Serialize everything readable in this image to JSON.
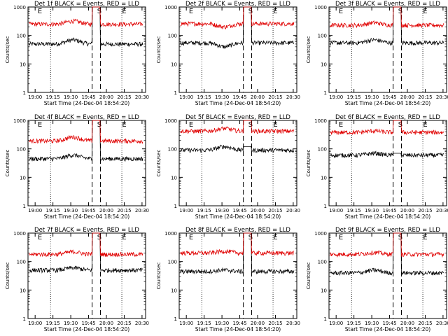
{
  "chart_data": [
    {
      "type": "line",
      "title": "Det 1f BLACK = Events, RED = LLD",
      "xlabel": "Start Time (24-Dec-04 18:54:20)",
      "ylabel": "Counts/sec",
      "xticks": [
        "19:00",
        "19:15",
        "19:30",
        "19:45",
        "20:00",
        "20:15",
        "20:30"
      ],
      "yticks": [
        "1",
        "10",
        "100",
        "1000"
      ],
      "yscale": "log",
      "ylim": [
        1,
        1000
      ],
      "markers": [
        {
          "label": "E",
          "x": "19:01"
        },
        {
          "label": "S",
          "x": "19:51"
        },
        {
          "label": "E",
          "x": "20:12"
        }
      ],
      "series": [
        {
          "name": "Events",
          "color": "#000000",
          "level": 50,
          "bump": 70,
          "peak": 1000
        },
        {
          "name": "LLD",
          "color": "#e00000",
          "level": 250,
          "bump": 320,
          "peak": 1000
        }
      ]
    },
    {
      "type": "line",
      "title": "Det 2f BLACK = Events, RED = LLD",
      "xlabel": "Start Time (24-Dec-04 18:54:20)",
      "ylabel": "Counts/sec",
      "xticks": [
        "19:00",
        "19:15",
        "19:30",
        "19:45",
        "20:00",
        "20:15",
        "20:30"
      ],
      "yticks": [
        "1",
        "10",
        "100",
        "1000"
      ],
      "yscale": "log",
      "ylim": [
        1,
        1000
      ],
      "markers": [
        {
          "label": "E",
          "x": "19:01"
        },
        {
          "label": "S",
          "x": "19:51"
        },
        {
          "label": "E",
          "x": "20:12"
        }
      ],
      "series": [
        {
          "name": "Events",
          "color": "#000000",
          "level": 55,
          "bump": 40,
          "peak": 1000
        },
        {
          "name": "LLD",
          "color": "#e00000",
          "level": 260,
          "bump": 200,
          "peak": 1000
        }
      ]
    },
    {
      "type": "line",
      "title": "Det 3f BLACK = Events, RED = LLD",
      "xlabel": "Start Time (24-Dec-04 18:54:20)",
      "ylabel": "Counts/sec",
      "xticks": [
        "19:00",
        "19:15",
        "19:30",
        "19:45",
        "20:00",
        "20:15",
        "20:30"
      ],
      "yticks": [
        "1",
        "10",
        "100",
        "1000"
      ],
      "yscale": "log",
      "ylim": [
        1,
        1000
      ],
      "markers": [
        {
          "label": "E",
          "x": "19:01"
        },
        {
          "label": "S",
          "x": "19:51"
        },
        {
          "label": "E",
          "x": "20:12"
        }
      ],
      "series": [
        {
          "name": "Events",
          "color": "#000000",
          "level": 55,
          "bump": 70,
          "peak": 1000
        },
        {
          "name": "LLD",
          "color": "#e00000",
          "level": 230,
          "bump": 280,
          "peak": 1000
        }
      ]
    },
    {
      "type": "line",
      "title": "Det 4f BLACK = Events, RED = LLD",
      "xlabel": "Start Time (24-Dec-04 18:54:20)",
      "ylabel": "Counts/sec",
      "xticks": [
        "19:00",
        "19:15",
        "19:30",
        "19:45",
        "20:00",
        "20:15",
        "20:30"
      ],
      "yticks": [
        "1",
        "10",
        "100",
        "1000"
      ],
      "yscale": "log",
      "ylim": [
        1,
        1000
      ],
      "markers": [
        {
          "label": "E",
          "x": "19:01"
        },
        {
          "label": "S",
          "x": "19:51"
        },
        {
          "label": "E",
          "x": "20:12"
        }
      ],
      "series": [
        {
          "name": "Events",
          "color": "#000000",
          "level": 45,
          "bump": 60,
          "peak": 1000
        },
        {
          "name": "LLD",
          "color": "#e00000",
          "level": 190,
          "bump": 260,
          "peak": 1000
        }
      ]
    },
    {
      "type": "line",
      "title": "Det 5f BLACK = Events, RED = LLD",
      "xlabel": "Start Time (24-Dec-04 18:54:20)",
      "ylabel": "Counts/sec",
      "xticks": [
        "19:00",
        "19:15",
        "19:30",
        "19:45",
        "20:00",
        "20:15",
        "20:30"
      ],
      "yticks": [
        "1",
        "10",
        "100",
        "1000"
      ],
      "yscale": "log",
      "ylim": [
        1,
        1000
      ],
      "markers": [
        {
          "label": "E",
          "x": "19:01"
        },
        {
          "label": "S",
          "x": "19:51"
        },
        {
          "label": "E",
          "x": "20:12"
        }
      ],
      "series": [
        {
          "name": "Events",
          "color": "#000000",
          "level": 90,
          "bump": 120,
          "peak": 120
        },
        {
          "name": "LLD",
          "color": "#e00000",
          "level": 420,
          "bump": 520,
          "peak": 1000
        }
      ]
    },
    {
      "type": "line",
      "title": "Det 6f BLACK = Events, RED = LLD",
      "xlabel": "Start Time (24-Dec-04 18:54:20)",
      "ylabel": "Counts/sec",
      "xticks": [
        "19:00",
        "19:15",
        "19:30",
        "19:45",
        "20:00",
        "20:15",
        "20:30"
      ],
      "yticks": [
        "1",
        "10",
        "100",
        "1000"
      ],
      "yscale": "log",
      "ylim": [
        1,
        1000
      ],
      "markers": [
        {
          "label": "E",
          "x": "19:01"
        },
        {
          "label": "S",
          "x": "19:51"
        },
        {
          "label": "E",
          "x": "20:12"
        }
      ],
      "series": [
        {
          "name": "Events",
          "color": "#000000",
          "level": 60,
          "bump": 70,
          "peak": 70
        },
        {
          "name": "LLD",
          "color": "#e00000",
          "level": 380,
          "bump": 430,
          "peak": 1000
        }
      ]
    },
    {
      "type": "line",
      "title": "Det 7f BLACK = Events, RED = LLD",
      "xlabel": "Start Time (24-Dec-04 18:54:20)",
      "ylabel": "Counts/sec",
      "xticks": [
        "19:00",
        "19:15",
        "19:30",
        "19:45",
        "20:00",
        "20:15",
        "20:30"
      ],
      "yticks": [
        "1",
        "10",
        "100",
        "1000"
      ],
      "yscale": "log",
      "ylim": [
        1,
        1000
      ],
      "markers": [
        {
          "label": "E",
          "x": "19:01"
        },
        {
          "label": "S",
          "x": "19:51"
        },
        {
          "label": "E",
          "x": "20:12"
        }
      ],
      "series": [
        {
          "name": "Events",
          "color": "#000000",
          "level": 50,
          "bump": 60,
          "peak": 1000
        },
        {
          "name": "LLD",
          "color": "#e00000",
          "level": 180,
          "bump": 220,
          "peak": 1000
        }
      ]
    },
    {
      "type": "line",
      "title": "Det 8f BLACK = Events, RED = LLD",
      "xlabel": "Start Time (24-Dec-04 18:54:20)",
      "ylabel": "Counts/sec",
      "xticks": [
        "19:00",
        "19:15",
        "19:30",
        "19:45",
        "20:00",
        "20:15",
        "20:30"
      ],
      "yticks": [
        "1",
        "10",
        "100",
        "1000"
      ],
      "yscale": "log",
      "ylim": [
        1,
        1000
      ],
      "markers": [
        {
          "label": "E",
          "x": "19:01"
        },
        {
          "label": "S",
          "x": "19:51"
        },
        {
          "label": "E",
          "x": "20:12"
        }
      ],
      "series": [
        {
          "name": "Events",
          "color": "#000000",
          "level": 45,
          "bump": 50,
          "peak": 1000
        },
        {
          "name": "LLD",
          "color": "#e00000",
          "level": 200,
          "bump": 230,
          "peak": 1000
        }
      ]
    },
    {
      "type": "line",
      "title": "Det 9f BLACK = Events, RED = LLD",
      "xlabel": "Start Time (24-Dec-04 18:54:20)",
      "ylabel": "Counts/sec",
      "xticks": [
        "19:00",
        "19:15",
        "19:30",
        "19:45",
        "20:00",
        "20:15",
        "20:30"
      ],
      "yticks": [
        "1",
        "10",
        "100",
        "1000"
      ],
      "yscale": "log",
      "ylim": [
        1,
        1000
      ],
      "markers": [
        {
          "label": "E",
          "x": "19:01"
        },
        {
          "label": "S",
          "x": "19:51"
        },
        {
          "label": "E",
          "x": "20:12"
        }
      ],
      "series": [
        {
          "name": "Events",
          "color": "#000000",
          "level": 40,
          "bump": 50,
          "peak": 1000
        },
        {
          "name": "LLD",
          "color": "#e00000",
          "level": 180,
          "bump": 210,
          "peak": 1000
        }
      ]
    }
  ]
}
